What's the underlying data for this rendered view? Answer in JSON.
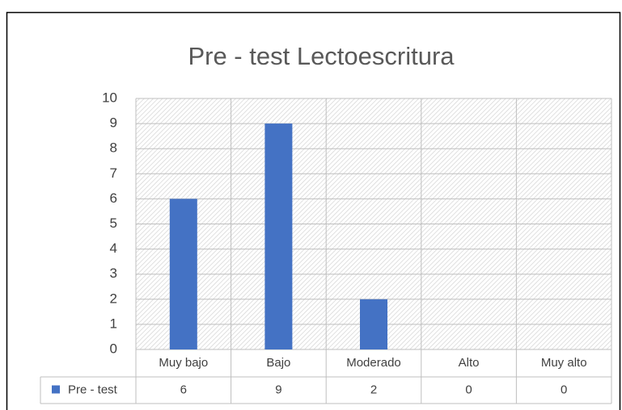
{
  "chart_data": {
    "type": "bar",
    "title": "Pre - test Lectoescritura",
    "categories": [
      "Muy bajo",
      "Bajo",
      "Moderado",
      "Alto",
      "Muy alto"
    ],
    "series": [
      {
        "name": "Pre - test",
        "color": "#4472c4",
        "values": [
          6,
          9,
          2,
          0,
          0
        ]
      }
    ],
    "ylim": [
      0,
      10
    ],
    "yticks": [
      0,
      1,
      2,
      3,
      4,
      5,
      6,
      7,
      8,
      9,
      10
    ],
    "grid": true
  }
}
